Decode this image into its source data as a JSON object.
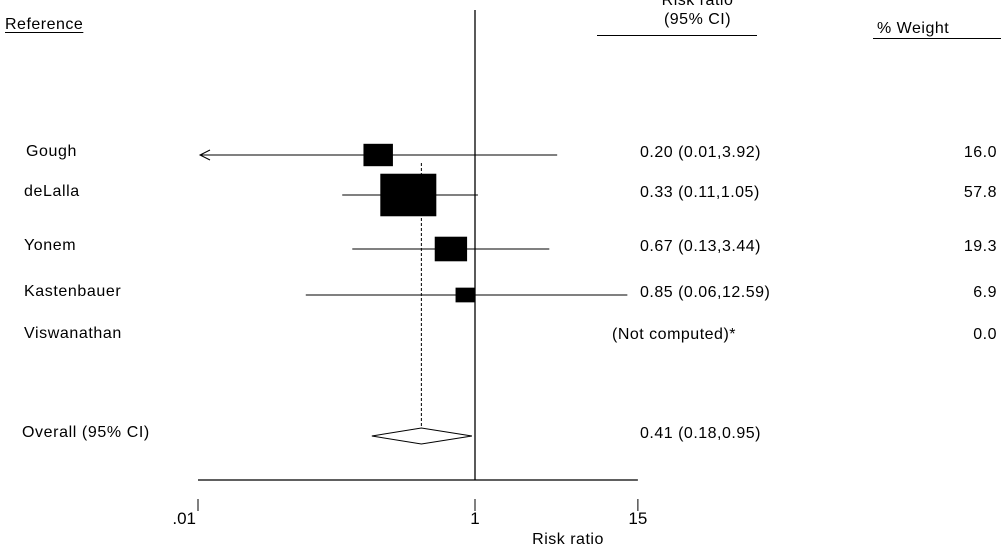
{
  "header": {
    "reference": "Reference",
    "risk_ratio_line1": "Risk ratio",
    "risk_ratio_line2": "(95% CI)",
    "weight": "% Weight"
  },
  "chart_data": {
    "type": "forest",
    "xlabel": "Risk ratio",
    "x_scale": "log",
    "xlim": [
      0.01,
      15
    ],
    "x_ticks": [
      0.01,
      1,
      15
    ],
    "x_tick_labels": [
      ".01",
      "1",
      "15"
    ],
    "null_line": 1,
    "studies": [
      {
        "label": "Gough",
        "rr": 0.2,
        "lo": 0.01,
        "hi": 3.92,
        "ci_text": "0.20 (0.01,3.92)",
        "weight": 16.0,
        "weight_text": "16.0",
        "arrow_left": true
      },
      {
        "label": "deLalla",
        "rr": 0.33,
        "lo": 0.11,
        "hi": 1.05,
        "ci_text": "0.33 (0.11,1.05)",
        "weight": 57.8,
        "weight_text": "57.8"
      },
      {
        "label": "Yonem",
        "rr": 0.67,
        "lo": 0.13,
        "hi": 3.44,
        "ci_text": "0.67 (0.13,3.44)",
        "weight": 19.3,
        "weight_text": "19.3"
      },
      {
        "label": "Kastenbauer",
        "rr": 0.85,
        "lo": 0.06,
        "hi": 12.59,
        "ci_text": "0.85 (0.06,12.59)",
        "weight": 6.9,
        "weight_text": "6.9"
      },
      {
        "label": "Viswanathan",
        "rr": null,
        "lo": null,
        "hi": null,
        "ci_text": "(Not computed)*",
        "weight": 0.0,
        "weight_text": "0.0"
      }
    ],
    "overall": {
      "label": "Overall (95% CI)",
      "rr": 0.41,
      "lo": 0.18,
      "hi": 0.95,
      "ci_text": "0.41 (0.18,0.95)"
    }
  }
}
